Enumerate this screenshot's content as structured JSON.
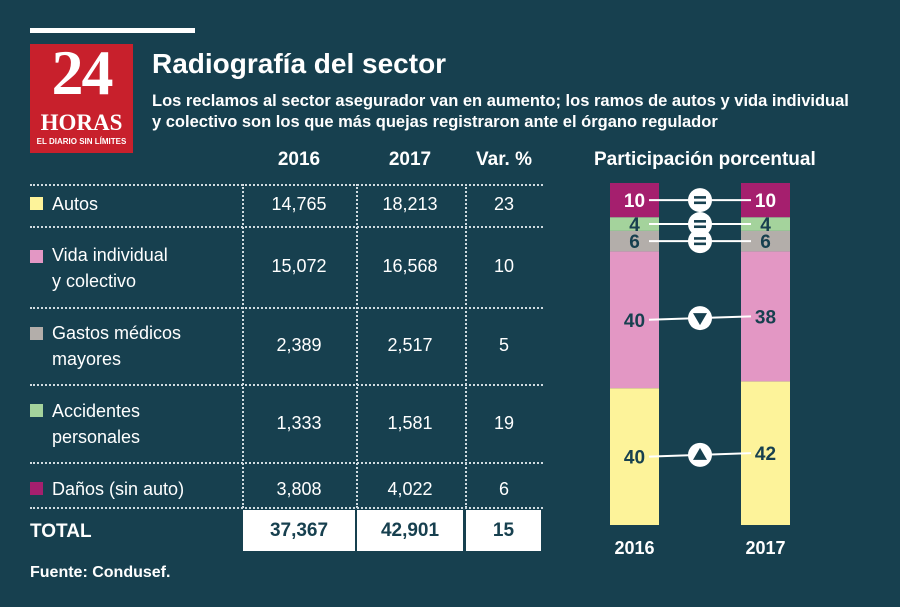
{
  "header": {
    "title": "Radiografía del sector",
    "subtitle": "Los reclamos al sector asegurador van en aumento; los ramos de autos y vida individual y colectivo son los que más quejas registraron ante el órgano regulador"
  },
  "logo": {
    "number": "24",
    "word": "HORAS",
    "tagline": "EL DIARIO SIN LÍMITES"
  },
  "colors": {
    "background": "#17404f",
    "autos": "#fdf39a",
    "vida": "#e397c4",
    "gastos": "#b3aeaa",
    "accidentes": "#a4d39c",
    "danos": "#a51f6e",
    "logo_red": "#c8202c"
  },
  "table": {
    "headers": [
      "2016",
      "2017",
      "Var. %"
    ],
    "rows": [
      {
        "label1": "Autos",
        "label2": "",
        "v2016": "14,765",
        "v2017": "18,213",
        "var": "23"
      },
      {
        "label1": "Vida individual",
        "label2": "y colectivo",
        "v2016": "15,072",
        "v2017": "16,568",
        "var": "10"
      },
      {
        "label1": "Gastos médicos",
        "label2": "mayores",
        "v2016": "2,389",
        "v2017": "2,517",
        "var": "5"
      },
      {
        "label1": "Accidentes",
        "label2": "personales",
        "v2016": "1,333",
        "v2017": "1,581",
        "var": "19"
      },
      {
        "label1": "Daños (sin auto)",
        "label2": "",
        "v2016": "3,808",
        "v2017": "4,022",
        "var": "6"
      }
    ],
    "total": {
      "label": "TOTAL",
      "v2016": "37,367",
      "v2017": "42,901",
      "var": "15"
    }
  },
  "source": "Fuente: Condusef.",
  "chart_data": {
    "type": "bar",
    "stacked": true,
    "title": "Participación porcentual",
    "categories": [
      "2016",
      "2017"
    ],
    "series": [
      {
        "key": "autos",
        "values": [
          40,
          42
        ],
        "color": "#fdf39a",
        "change": "up"
      },
      {
        "key": "vida",
        "values": [
          40,
          38
        ],
        "color": "#e397c4",
        "change": "down"
      },
      {
        "key": "gastos",
        "values": [
          6,
          6
        ],
        "color": "#b3aeaa",
        "change": "equal"
      },
      {
        "key": "accidentes",
        "values": [
          4,
          4
        ],
        "color": "#a4d39c",
        "change": "equal"
      },
      {
        "key": "danos",
        "values": [
          10,
          10
        ],
        "color": "#a51f6e",
        "change": "equal"
      }
    ],
    "ylim": [
      0,
      100
    ]
  }
}
